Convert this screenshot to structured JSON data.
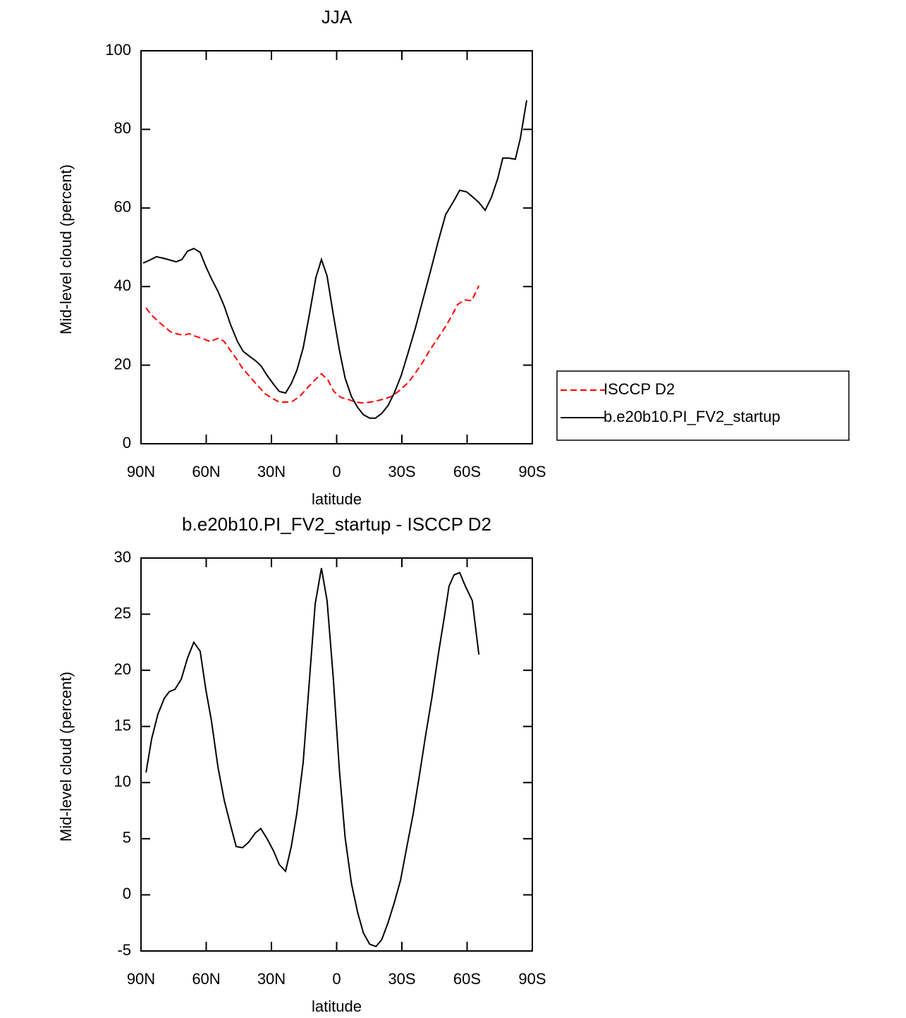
{
  "chart_data": [
    {
      "type": "line",
      "title": "JJA",
      "x_label": "latitude",
      "y_label": "Mid-level cloud (percent)",
      "xlim": [
        90,
        -90
      ],
      "xticks": [
        {
          "value": 90,
          "label": "90N"
        },
        {
          "value": 60,
          "label": "60N"
        },
        {
          "value": 30,
          "label": "30N"
        },
        0,
        {
          "value": -30,
          "label": "30S"
        },
        {
          "value": -60,
          "label": "60S"
        },
        {
          "value": -90,
          "label": "90S"
        }
      ],
      "ylim": [
        0,
        100
      ],
      "yticks": [
        0,
        20,
        40,
        60,
        80,
        100
      ],
      "legend": "right",
      "series": [
        {
          "name": "ISCCP D2",
          "color": "#ff0000",
          "line_style": "dashed",
          "x": [
            87.7,
            85.1,
            82.2,
            79.3,
            76.4,
            73.8,
            70.5,
            67.9,
            64.7,
            61.8,
            58.2,
            54.3,
            51.7,
            49.5,
            46.2,
            43.3,
            39.7,
            36.5,
            32.9,
            29.4,
            26.4,
            23.2,
            20.3,
            17.1,
            13.5,
            9.9,
            7.0,
            4.1,
            1.3,
            -1.9,
            -5.2,
            -8.7,
            -12.0,
            -15.5,
            -19.1,
            -22.6,
            -25.9,
            -29.4,
            -33.0,
            -36.2,
            -39.4,
            -42.7,
            -46.2,
            -49.5,
            -52.7,
            -55.6,
            -58.9,
            -62.1,
            -65.4
          ],
          "values": [
            34.6,
            32.7,
            31.2,
            29.8,
            28.5,
            28.0,
            27.6,
            28.0,
            27.3,
            26.8,
            26.0,
            26.9,
            26.0,
            24.2,
            21.7,
            19.2,
            16.9,
            14.9,
            12.7,
            11.5,
            10.6,
            10.6,
            10.8,
            12.0,
            14.2,
            16.3,
            17.8,
            16.3,
            13.3,
            11.8,
            11.3,
            10.6,
            10.4,
            10.6,
            11.0,
            11.5,
            12.2,
            13.8,
            15.6,
            18.0,
            20.6,
            23.7,
            26.6,
            29.3,
            32.3,
            35.4,
            36.6,
            36.4,
            40.2
          ]
        },
        {
          "name": "b.e20b10.PI_FV2_startup",
          "color": "#000000",
          "line_style": "solid",
          "x": [
            89.0,
            86.1,
            82.9,
            79.6,
            73.8,
            71.2,
            68.6,
            65.7,
            62.8,
            60.2,
            57.6,
            54.6,
            51.7,
            48.8,
            45.6,
            43.0,
            39.7,
            37.5,
            34.9,
            32.0,
            29.0,
            26.4,
            23.5,
            20.9,
            18.3,
            15.4,
            12.8,
            9.6,
            7.0,
            4.4,
            1.6,
            -1.3,
            -3.9,
            -6.8,
            -9.7,
            -12.3,
            -15.2,
            -17.8,
            -20.7,
            -23.6,
            -26.5,
            -29.7,
            -32.9,
            -36.2,
            -39.4,
            -43.3,
            -46.6,
            -50.1,
            -54.0,
            -56.6,
            -59.8,
            -62.8,
            -65.4,
            -68.3,
            -71.2,
            -74.1,
            -76.4,
            -79.3,
            -82.2,
            -84.5,
            -87.4
          ],
          "values": [
            46.0,
            46.7,
            47.6,
            47.2,
            46.3,
            46.9,
            49.0,
            49.7,
            48.7,
            45.1,
            42.0,
            38.8,
            35.0,
            30.3,
            26.0,
            23.5,
            22.1,
            21.2,
            19.9,
            17.4,
            15.1,
            13.3,
            12.9,
            15.3,
            18.7,
            24.4,
            32.1,
            42.2,
            46.9,
            42.7,
            33.0,
            23.7,
            16.7,
            12.0,
            9.2,
            7.4,
            6.5,
            6.5,
            7.7,
            9.7,
            12.9,
            17.4,
            23.2,
            29.4,
            36.1,
            44.2,
            51.3,
            58.3,
            61.9,
            64.5,
            64.1,
            62.7,
            61.4,
            59.4,
            62.7,
            67.5,
            72.7,
            72.7,
            72.4,
            77.7,
            87.4
          ]
        }
      ]
    },
    {
      "type": "line",
      "title": "b.e20b10.PI_FV2_startup - ISCCP D2",
      "x_label": "latitude",
      "y_label": "Mid-level cloud (percent)",
      "xlim": [
        90,
        -90
      ],
      "xticks": [
        {
          "value": 90,
          "label": "90N"
        },
        {
          "value": 60,
          "label": "60N"
        },
        {
          "value": 30,
          "label": "30N"
        },
        0,
        {
          "value": -30,
          "label": "30S"
        },
        {
          "value": -60,
          "label": "60S"
        },
        {
          "value": -90,
          "label": "90S"
        }
      ],
      "ylim": [
        -5,
        30
      ],
      "yticks": [
        -5,
        0,
        5,
        10,
        15,
        20,
        25,
        30
      ],
      "series": [
        {
          "color": "#000000",
          "line_style": "solid",
          "x": [
            87.7,
            85.1,
            82.2,
            79.3,
            77.0,
            74.4,
            71.5,
            68.6,
            65.7,
            62.8,
            60.2,
            57.6,
            54.6,
            51.7,
            48.8,
            46.2,
            43.3,
            40.4,
            37.5,
            34.9,
            32.0,
            29.0,
            26.4,
            23.5,
            20.9,
            18.3,
            15.4,
            12.8,
            9.9,
            7.0,
            4.4,
            1.6,
            -1.3,
            -3.9,
            -6.8,
            -9.7,
            -12.3,
            -15.2,
            -18.1,
            -20.7,
            -23.6,
            -26.5,
            -29.4,
            -32.3,
            -35.2,
            -38.1,
            -41.0,
            -43.9,
            -46.9,
            -49.5,
            -51.7,
            -54.0,
            -56.6,
            -59.2,
            -62.4,
            -65.4
          ],
          "values": [
            10.9,
            13.9,
            16.1,
            17.5,
            18.1,
            18.3,
            19.2,
            21.1,
            22.5,
            21.7,
            18.3,
            15.5,
            11.4,
            8.4,
            6.2,
            4.3,
            4.2,
            4.7,
            5.5,
            5.9,
            5.0,
            3.9,
            2.7,
            2.1,
            4.3,
            7.3,
            11.8,
            18.4,
            25.9,
            29.1,
            26.2,
            19.4,
            11.0,
            5.1,
            1.0,
            -1.6,
            -3.4,
            -4.4,
            -4.6,
            -4.0,
            -2.5,
            -0.7,
            1.3,
            4.3,
            7.2,
            10.7,
            14.3,
            17.7,
            21.6,
            24.7,
            27.5,
            28.5,
            28.7,
            27.5,
            26.2,
            21.4
          ]
        }
      ]
    }
  ]
}
